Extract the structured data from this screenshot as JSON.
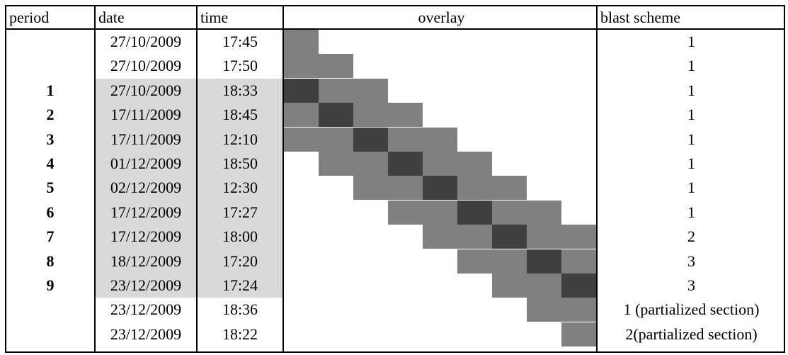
{
  "headers": {
    "period": "period",
    "date": "date",
    "time": "time",
    "overlay": "overlay",
    "blast_scheme": "blast scheme"
  },
  "colors": {
    "overlay_light": "#808080",
    "overlay_dark": "#404040",
    "highlight_fill": "#d9d9d9"
  },
  "rows": [
    {
      "period": "",
      "date": "27/10/2009",
      "time": "17:45",
      "blast_scheme": "1",
      "highlighted": false,
      "overlay_start": 0,
      "overlay_length": 1,
      "overlay_dark": -1
    },
    {
      "period": "",
      "date": "27/10/2009",
      "time": "17:50",
      "blast_scheme": "1",
      "highlighted": false,
      "overlay_start": 0,
      "overlay_length": 2,
      "overlay_dark": -1
    },
    {
      "period": "1",
      "date": "27/10/2009",
      "time": "18:33",
      "blast_scheme": "1",
      "highlighted": true,
      "overlay_start": 0,
      "overlay_length": 3,
      "overlay_dark": 0
    },
    {
      "period": "2",
      "date": "17/11/2009",
      "time": "18:45",
      "blast_scheme": "1",
      "highlighted": true,
      "overlay_start": 0,
      "overlay_length": 4,
      "overlay_dark": 1
    },
    {
      "period": "3",
      "date": "17/11/2009",
      "time": "12:10",
      "blast_scheme": "1",
      "highlighted": true,
      "overlay_start": 0,
      "overlay_length": 5,
      "overlay_dark": 2
    },
    {
      "period": "4",
      "date": "01/12/2009",
      "time": "18:50",
      "blast_scheme": "1",
      "highlighted": true,
      "overlay_start": 1,
      "overlay_length": 5,
      "overlay_dark": 3
    },
    {
      "period": "5",
      "date": "02/12/2009",
      "time": "12:30",
      "blast_scheme": "1",
      "highlighted": true,
      "overlay_start": 2,
      "overlay_length": 5,
      "overlay_dark": 4
    },
    {
      "period": "6",
      "date": "17/12/2009",
      "time": "17:27",
      "blast_scheme": "1",
      "highlighted": true,
      "overlay_start": 3,
      "overlay_length": 5,
      "overlay_dark": 5
    },
    {
      "period": "7",
      "date": "17/12/2009",
      "time": "18:00",
      "blast_scheme": "2",
      "highlighted": true,
      "overlay_start": 4,
      "overlay_length": 5,
      "overlay_dark": 6
    },
    {
      "period": "8",
      "date": "18/12/2009",
      "time": "17:20",
      "blast_scheme": "3",
      "highlighted": true,
      "overlay_start": 5,
      "overlay_length": 4,
      "overlay_dark": 7
    },
    {
      "period": "9",
      "date": "23/12/2009",
      "time": "17:24",
      "blast_scheme": "3",
      "highlighted": true,
      "overlay_start": 6,
      "overlay_length": 3,
      "overlay_dark": 8
    },
    {
      "period": "",
      "date": "23/12/2009",
      "time": "18:36",
      "blast_scheme": "1 (partialized section)",
      "highlighted": false,
      "overlay_start": 7,
      "overlay_length": 2,
      "overlay_dark": -1
    },
    {
      "period": "",
      "date": "23/12/2009",
      "time": "18:22",
      "blast_scheme": "2(partialized section)",
      "highlighted": false,
      "overlay_start": 8,
      "overlay_length": 1,
      "overlay_dark": -1
    }
  ]
}
